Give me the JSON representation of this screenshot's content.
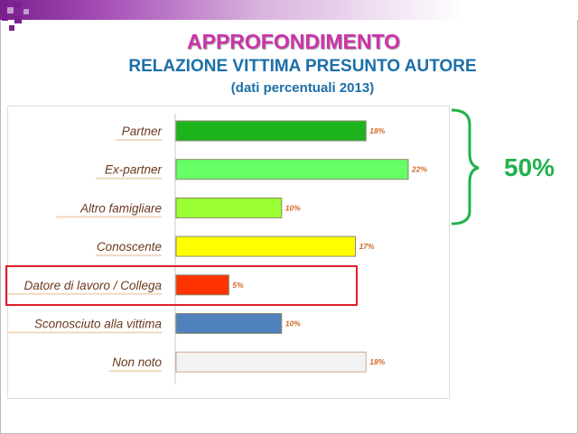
{
  "header": {
    "title": "APPROFONDIMENTO",
    "subtitle": "RELAZIONE VITTIMA PRESUNTO AUTORE",
    "note": "(dati percentuali 2013)"
  },
  "annotation": {
    "brace_total": "50%",
    "brace_color": "#22b14c",
    "highlight_color": "#e0202a",
    "highlighted_category": "Datore di lavoro / Collega"
  },
  "chart_data": {
    "type": "bar",
    "orientation": "horizontal",
    "categories": [
      "Partner",
      "Ex-partner",
      "Altro famigliare",
      "Conoscente",
      "Datore di lavoro / Collega",
      "Sconosciuto alla vittima",
      "Non noto"
    ],
    "values": [
      18,
      22,
      10,
      17,
      5,
      10,
      18
    ],
    "value_labels": [
      "18%",
      "22%",
      "10%",
      "17%",
      "5%",
      "10%",
      "18%"
    ],
    "colors": [
      "#1db31d",
      "#66ff66",
      "#99ff33",
      "#ffff00",
      "#ff3300",
      "#4f81bd",
      "#f2f2f2"
    ],
    "xlim": [
      0,
      22
    ],
    "grid": false,
    "legend": "none"
  }
}
